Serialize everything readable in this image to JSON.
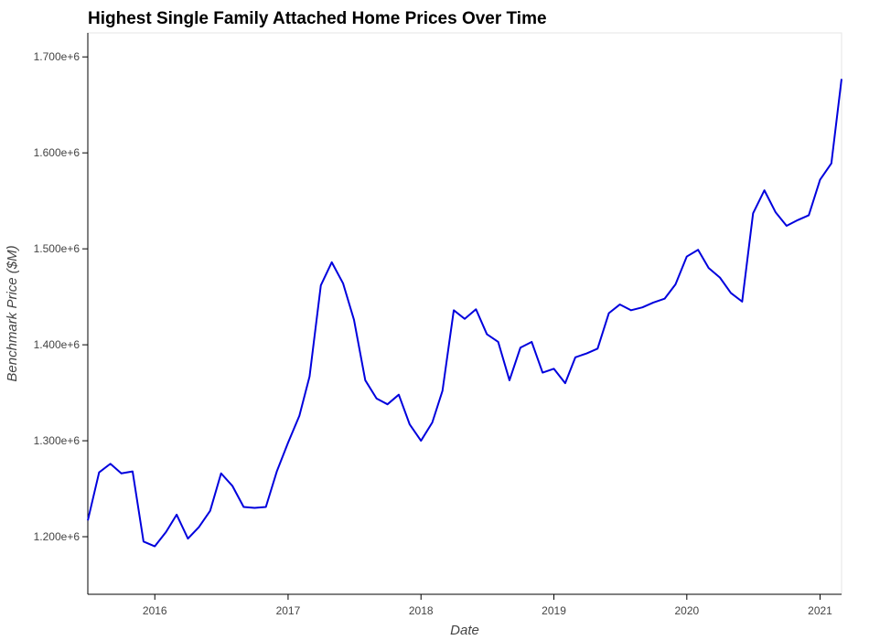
{
  "chart_data": {
    "type": "line",
    "title": "Highest Single Family Attached Home Prices Over Time",
    "xlabel": "Date",
    "ylabel": "Benchmark Price ($M)",
    "xlim": [
      "2015-07-01",
      "2021-03-01"
    ],
    "ylim": [
      1140000,
      1725000
    ],
    "x_ticks": [
      "2016",
      "2017",
      "2018",
      "2019",
      "2020",
      "2021"
    ],
    "y_ticks": [
      {
        "value": 1200000,
        "label": "1.200e+6"
      },
      {
        "value": 1300000,
        "label": "1.300e+6"
      },
      {
        "value": 1400000,
        "label": "1.400e+6"
      },
      {
        "value": 1500000,
        "label": "1.500e+6"
      },
      {
        "value": 1600000,
        "label": "1.600e+6"
      },
      {
        "value": 1700000,
        "label": "1.700e+6"
      }
    ],
    "grid": false,
    "colors": {
      "line": "#0000dd",
      "axis": "#000000",
      "frame": "#e5e5e5"
    },
    "x": [
      "2015-07-01",
      "2015-08-01",
      "2015-09-01",
      "2015-10-01",
      "2015-11-01",
      "2015-12-01",
      "2016-01-01",
      "2016-02-01",
      "2016-03-01",
      "2016-04-01",
      "2016-05-01",
      "2016-06-01",
      "2016-07-01",
      "2016-08-01",
      "2016-09-01",
      "2016-10-01",
      "2016-11-01",
      "2016-12-01",
      "2017-01-01",
      "2017-02-01",
      "2017-03-01",
      "2017-04-01",
      "2017-05-01",
      "2017-06-01",
      "2017-07-01",
      "2017-08-01",
      "2017-09-01",
      "2017-10-01",
      "2017-11-01",
      "2017-12-01",
      "2018-01-01",
      "2018-02-01",
      "2018-03-01",
      "2018-04-01",
      "2018-05-01",
      "2018-06-01",
      "2018-07-01",
      "2018-08-01",
      "2018-09-01",
      "2018-10-01",
      "2018-11-01",
      "2018-12-01",
      "2019-01-01",
      "2019-02-01",
      "2019-03-01",
      "2019-04-01",
      "2019-05-01",
      "2019-06-01",
      "2019-07-01",
      "2019-08-01",
      "2019-09-01",
      "2019-10-01",
      "2019-11-01",
      "2019-12-01",
      "2020-01-01",
      "2020-02-01",
      "2020-03-01",
      "2020-04-01",
      "2020-05-01",
      "2020-06-01",
      "2020-07-01",
      "2020-08-01",
      "2020-09-01",
      "2020-10-01",
      "2020-11-01",
      "2020-12-01",
      "2021-01-01",
      "2021-02-01",
      "2021-03-01"
    ],
    "series": [
      {
        "values": [
          1217000,
          1267000,
          1276000,
          1266000,
          1268000,
          1195000,
          1190000,
          1205000,
          1223000,
          1198000,
          1210000,
          1227000,
          1266000,
          1253000,
          1231000,
          1230000,
          1231000,
          1268000,
          1298000,
          1326000,
          1367000,
          1462000,
          1486000,
          1464000,
          1426000,
          1363000,
          1344000,
          1338000,
          1348000,
          1317000,
          1300000,
          1319000,
          1352000,
          1436000,
          1427000,
          1437000,
          1411000,
          1403000,
          1363000,
          1397000,
          1403000,
          1371000,
          1375000,
          1360000,
          1387000,
          1391000,
          1396000,
          1433000,
          1442000,
          1436000,
          1439000,
          1444000,
          1448000,
          1463000,
          1492000,
          1499000,
          1480000,
          1470000,
          1454000,
          1445000,
          1537000,
          1561000,
          1538000,
          1524000,
          1530000,
          1535000,
          1572000,
          1589000,
          1677000
        ]
      }
    ]
  }
}
